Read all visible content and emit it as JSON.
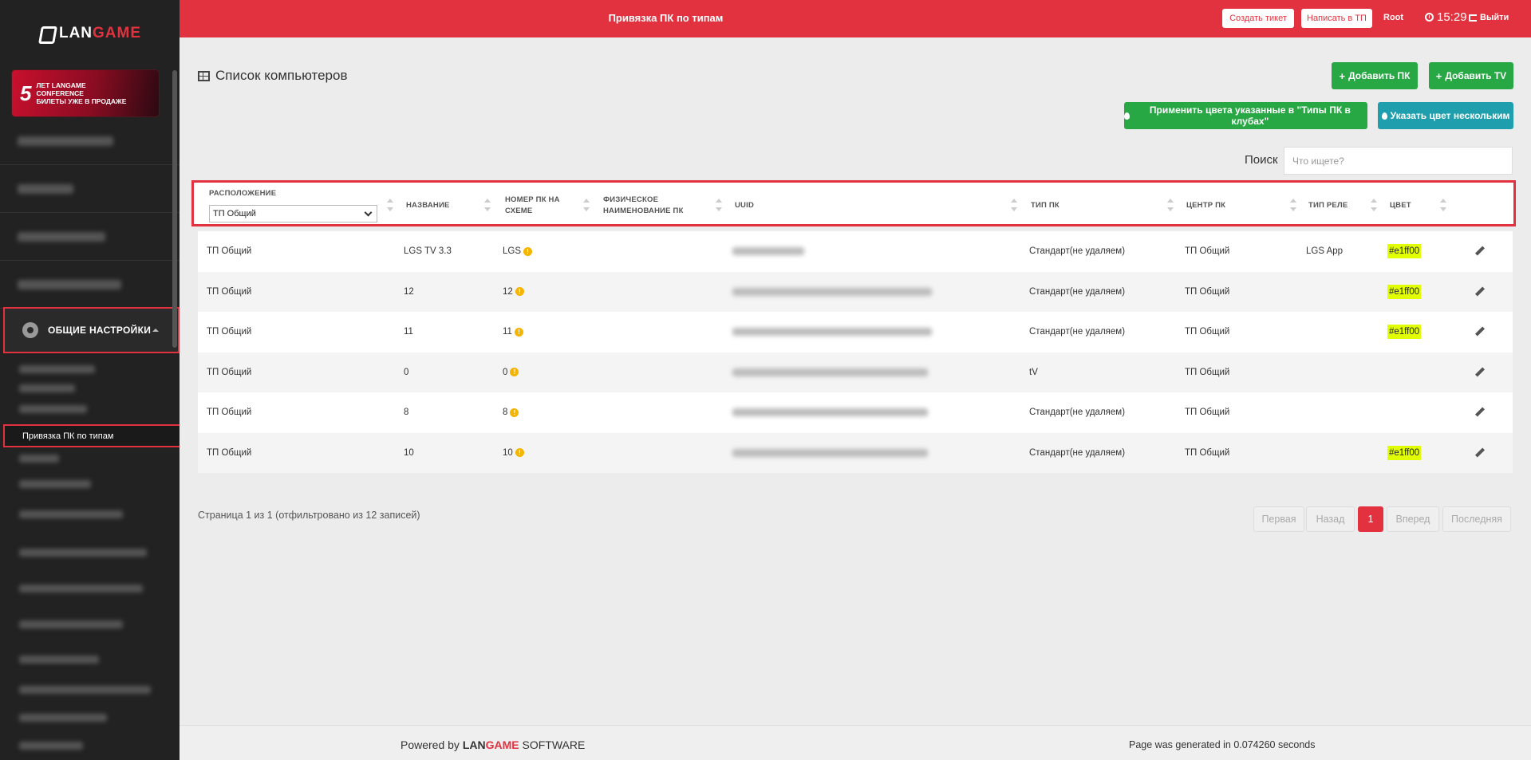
{
  "sidebar": {
    "logo": {
      "lan": "LAN",
      "game": "GAME"
    },
    "banner": {
      "number": "5",
      "line1": "лет LANGAME",
      "line2": "CONFERENCE",
      "line3": "БИЛЕТЫ УЖЕ В ПРОДАЖЕ"
    },
    "section_label": "ОБЩИЕ НАСТРОЙКИ",
    "active_sub_item": "Привязка ПК по типам"
  },
  "topbar": {
    "title": "Привязка ПК по типам",
    "create_ticket": "Создать тикет",
    "write_support": "Написать в ТП",
    "user": "Root",
    "time": "15:29",
    "logout": "Выйти"
  },
  "main": {
    "title": "Список компьютеров",
    "add_pc": "Добавить ПК",
    "add_tv": "Добавить TV",
    "apply_colors": "Применить цвета указанные в \"Типы ПК в клубах\"",
    "set_color_multi": "Указать цвет нескольким",
    "search_label": "Поиск",
    "search_placeholder": "Что ищете?"
  },
  "table": {
    "headers": {
      "location": "Расположение",
      "location_selected": "ТП Общий",
      "name": "Название",
      "scheme_number_1": "Номер ПК на",
      "scheme_number_2": "схеме",
      "physical_name_1": "Физическое",
      "physical_name_2": "наименование ПК",
      "uuid": "UUID",
      "pc_type": "Тип ПК",
      "pc_center": "Центр ПК",
      "relay_type": "Тип реле",
      "color": "Цвет"
    },
    "rows": [
      {
        "location": "ТП Общий",
        "name": "LGS TV 3.3",
        "scheme": "LGS",
        "type": "Стандарт(не удаляем)",
        "center": "ТП Общий",
        "relay": "LGS App",
        "color": "#e1ff00"
      },
      {
        "location": "ТП Общий",
        "name": "12",
        "scheme": "12",
        "type": "Стандарт(не удаляем)",
        "center": "ТП Общий",
        "relay": "",
        "color": "#e1ff00"
      },
      {
        "location": "ТП Общий",
        "name": "11",
        "scheme": "11",
        "type": "Стандарт(не удаляем)",
        "center": "ТП Общий",
        "relay": "",
        "color": "#e1ff00"
      },
      {
        "location": "ТП Общий",
        "name": "0",
        "scheme": "0",
        "type": "tV",
        "center": "ТП Общий",
        "relay": "",
        "color": ""
      },
      {
        "location": "ТП Общий",
        "name": "8",
        "scheme": "8",
        "type": "Стандарт(не удаляем)",
        "center": "ТП Общий",
        "relay": "",
        "color": ""
      },
      {
        "location": "ТП Общий",
        "name": "10",
        "scheme": "10",
        "type": "Стандарт(не удаляем)",
        "center": "ТП Общий",
        "relay": "",
        "color": "#e1ff00"
      }
    ]
  },
  "pagination": {
    "info": "Страница 1 из 1 (отфильтровано из 12 записей)",
    "first": "Первая",
    "prev": "Назад",
    "current": "1",
    "next": "Вперед",
    "last": "Последняя"
  },
  "footer": {
    "powered_by": "Powered by",
    "brand_lan": "LAN",
    "brand_game": "GAME",
    "brand_software": "SOFTWARE",
    "generated": "Page was generated in 0.074260 seconds"
  },
  "colors": {
    "accent": "#e2323f",
    "green": "#27a844",
    "teal": "#1f9fad",
    "highlight": "#e1ff00"
  }
}
